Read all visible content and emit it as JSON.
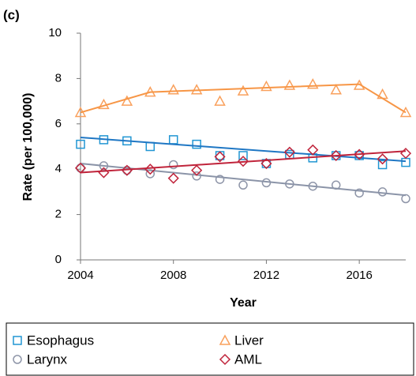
{
  "chart_data": {
    "type": "scatter",
    "panel_label": "(c)",
    "x_label": "Year",
    "y_label": "Rate (per 100,000)",
    "x": [
      2004,
      2005,
      2006,
      2007,
      2008,
      2009,
      2010,
      2011,
      2012,
      2013,
      2014,
      2015,
      2016,
      2017,
      2018
    ],
    "xlim": [
      2004,
      2018
    ],
    "xticks": [
      2004,
      2008,
      2012,
      2016
    ],
    "ylim": [
      0,
      10
    ],
    "yticks": [
      0,
      2,
      4,
      6,
      8,
      10
    ],
    "grid": false,
    "series": [
      {
        "name": "Esophagus",
        "marker": "square",
        "color": "#2196d3",
        "line_color": "#1f77c4",
        "values": [
          5.1,
          5.3,
          5.25,
          5.0,
          5.3,
          5.1,
          4.6,
          4.6,
          4.25,
          4.65,
          4.5,
          4.6,
          4.6,
          4.2,
          4.3
        ],
        "trend": {
          "x": [
            2004,
            2018
          ],
          "values": [
            5.4,
            4.35
          ]
        }
      },
      {
        "name": "Liver",
        "marker": "triangle",
        "color": "#f9a05c",
        "line_color": "#f79646",
        "values": [
          6.5,
          6.85,
          7.0,
          7.4,
          7.5,
          7.5,
          7.0,
          7.45,
          7.65,
          7.7,
          7.75,
          7.5,
          7.7,
          7.3,
          6.5
        ],
        "trend": {
          "x": [
            2004,
            2007,
            2016,
            2018
          ],
          "values": [
            6.5,
            7.4,
            7.75,
            6.5
          ]
        }
      },
      {
        "name": "Larynx",
        "marker": "circle",
        "color": "#8e95a8",
        "line_color": "#8b94a8",
        "values": [
          4.05,
          4.15,
          3.95,
          3.8,
          4.2,
          3.7,
          3.55,
          3.3,
          3.4,
          3.35,
          3.25,
          3.3,
          2.95,
          3.0,
          2.7
        ],
        "trend": {
          "x": [
            2004,
            2018
          ],
          "values": [
            4.25,
            2.85
          ]
        }
      },
      {
        "name": "AML",
        "marker": "diamond",
        "color": "#c0243b",
        "line_color": "#c0243b",
        "values": [
          4.05,
          3.85,
          3.95,
          4.0,
          3.6,
          3.95,
          4.55,
          4.35,
          4.25,
          4.75,
          4.85,
          4.6,
          4.65,
          4.45,
          4.7
        ],
        "trend": {
          "x": [
            2004,
            2018
          ],
          "values": [
            3.85,
            4.8
          ]
        }
      }
    ]
  }
}
